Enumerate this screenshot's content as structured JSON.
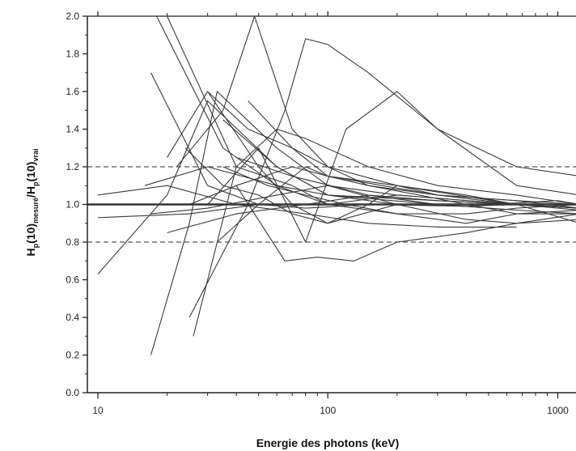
{
  "chart_data": {
    "type": "line",
    "title": "",
    "xlabel": "Energie des photons (keV)",
    "ylabel": {
      "parts": [
        "H",
        "p",
        "(10)",
        "mesuré",
        "/H",
        "p",
        "(10)",
        "vrai"
      ]
    },
    "xscale": "log",
    "xlim": [
      9,
      1200
    ],
    "ylim": [
      0.0,
      2.0
    ],
    "x_ticks": [
      10,
      100,
      1000
    ],
    "x_tick_labels": [
      "10",
      "100",
      "1000"
    ],
    "y_ticks": [
      0.0,
      0.2,
      0.4,
      0.6,
      0.8,
      1.0,
      1.2,
      1.4,
      1.6,
      1.8,
      2.0
    ],
    "y_tick_labels": [
      "0.0",
      "0.2",
      "0.4",
      "0.6",
      "0.8",
      "1.0",
      "1.2",
      "1.4",
      "1.6",
      "1.8",
      "2.0"
    ],
    "grid": false,
    "reference_lines": [
      {
        "y": 1.0,
        "style": "solid"
      },
      {
        "y": 1.2,
        "style": "dashed"
      },
      {
        "y": 0.8,
        "style": "dashed"
      }
    ],
    "line_color": "#3a3a3a",
    "series": [
      {
        "x": [
          10,
          20,
          30,
          60,
          100,
          300,
          662,
          1250
        ],
        "y": [
          0.63,
          1.05,
          1.55,
          1.2,
          1.05,
          1.0,
          1.0,
          0.98
        ]
      },
      {
        "x": [
          17,
          25,
          33,
          60,
          100,
          200,
          662,
          1250
        ],
        "y": [
          0.2,
          0.9,
          1.6,
          1.3,
          1.1,
          1.05,
          1.0,
          1.0
        ]
      },
      {
        "x": [
          17,
          30,
          50,
          80,
          150,
          400,
          662,
          1250
        ],
        "y": [
          1.7,
          1.1,
          1.0,
          0.98,
          1.0,
          0.99,
          1.0,
          1.0
        ]
      },
      {
        "x": [
          18,
          35,
          60,
          100,
          300,
          662,
          1250
        ],
        "y": [
          2.0,
          1.3,
          1.1,
          1.05,
          1.02,
          1.0,
          1.0
        ]
      },
      {
        "x": [
          20,
          40,
          70,
          100,
          200,
          662,
          1250
        ],
        "y": [
          2.0,
          1.2,
          1.1,
          1.0,
          1.05,
          1.0,
          0.98
        ]
      },
      {
        "x": [
          25,
          45,
          65,
          80,
          100,
          150,
          300,
          662,
          1250
        ],
        "y": [
          0.4,
          1.0,
          1.5,
          1.88,
          1.85,
          1.7,
          1.4,
          1.2,
          1.15
        ]
      },
      {
        "x": [
          26,
          40,
          60,
          80,
          150,
          300,
          662,
          1250
        ],
        "y": [
          0.3,
          1.2,
          1.4,
          1.35,
          1.2,
          1.1,
          1.05,
          1.0
        ]
      },
      {
        "x": [
          30,
          50,
          70,
          100,
          150,
          200,
          300,
          662
        ],
        "y": [
          1.6,
          1.2,
          1.0,
          0.9,
          1.0,
          1.1,
          1.05,
          1.0
        ]
      },
      {
        "x": [
          22,
          35,
          48,
          70,
          100,
          200,
          662,
          1250
        ],
        "y": [
          1.2,
          1.5,
          2.0,
          1.4,
          1.2,
          1.1,
          1.0,
          1.0
        ]
      },
      {
        "x": [
          20,
          30,
          45,
          70,
          100,
          300,
          662,
          1250
        ],
        "y": [
          1.25,
          1.6,
          1.4,
          1.3,
          1.15,
          1.05,
          1.02,
          1.0
        ]
      },
      {
        "x": [
          24,
          35,
          50,
          70,
          100,
          200,
          662,
          1250
        ],
        "y": [
          1.3,
          1.1,
          1.05,
          0.95,
          0.9,
          1.0,
          1.0,
          0.98
        ]
      },
      {
        "x": [
          25,
          40,
          65,
          90,
          130,
          200,
          400,
          662,
          1250
        ],
        "y": [
          1.0,
          1.1,
          0.7,
          0.72,
          0.7,
          0.8,
          0.85,
          0.9,
          0.92
        ]
      },
      {
        "x": [
          30,
          50,
          80,
          120,
          200,
          300,
          662,
          1250
        ],
        "y": [
          1.0,
          1.3,
          0.8,
          1.4,
          1.6,
          1.4,
          1.1,
          1.05
        ]
      },
      {
        "x": [
          35,
          55,
          80,
          120,
          200,
          400,
          662,
          1250
        ],
        "y": [
          1.2,
          1.1,
          1.05,
          1.0,
          0.95,
          0.95,
          0.98,
          1.0
        ]
      },
      {
        "x": [
          40,
          70,
          100,
          150,
          250,
          400,
          662,
          1250
        ],
        "y": [
          1.1,
          1.2,
          1.15,
          1.1,
          1.05,
          1.0,
          1.0,
          0.97
        ]
      },
      {
        "x": [
          45,
          70,
          100,
          150,
          300,
          662,
          1250
        ],
        "y": [
          1.55,
          1.3,
          1.2,
          1.1,
          1.05,
          1.02,
          0.98
        ]
      },
      {
        "x": [
          35,
          60,
          100,
          200,
          400,
          662,
          1250
        ],
        "y": [
          1.45,
          1.2,
          1.05,
          1.0,
          1.0,
          0.95,
          0.95
        ]
      },
      {
        "x": [
          16,
          30,
          60,
          100,
          200,
          400,
          662,
          1250
        ],
        "y": [
          1.1,
          1.2,
          1.1,
          1.0,
          0.95,
          0.9,
          0.95,
          0.97
        ]
      },
      {
        "x": [
          10,
          20,
          40,
          80,
          150,
          300,
          662
        ],
        "y": [
          1.05,
          1.1,
          1.0,
          0.95,
          0.9,
          0.88,
          0.88
        ]
      },
      {
        "x": [
          17,
          30,
          60,
          100,
          200,
          400,
          662,
          1250
        ],
        "y": [
          0.95,
          0.98,
          1.05,
          1.1,
          1.0,
          0.92,
          0.9,
          0.95
        ]
      },
      {
        "x": [
          20,
          40,
          80,
          150,
          300,
          662,
          1250
        ],
        "y": [
          0.85,
          0.95,
          1.0,
          1.05,
          1.02,
          1.0,
          0.98
        ]
      },
      {
        "x": [
          33,
          50,
          80,
          100,
          200,
          400,
          662,
          1250
        ],
        "y": [
          0.8,
          1.0,
          1.2,
          1.15,
          1.1,
          1.05,
          1.0,
          0.9
        ]
      },
      {
        "x": [
          40,
          70,
          150,
          300,
          662,
          1250
        ],
        "y": [
          1.25,
          1.15,
          1.05,
          1.0,
          0.97,
          0.95
        ]
      },
      {
        "x": [
          10,
          25,
          50,
          100,
          200,
          500,
          1000,
          1250
        ],
        "y": [
          0.93,
          0.95,
          1.0,
          1.0,
          1.0,
          1.0,
          1.02,
          1.0
        ]
      }
    ]
  }
}
